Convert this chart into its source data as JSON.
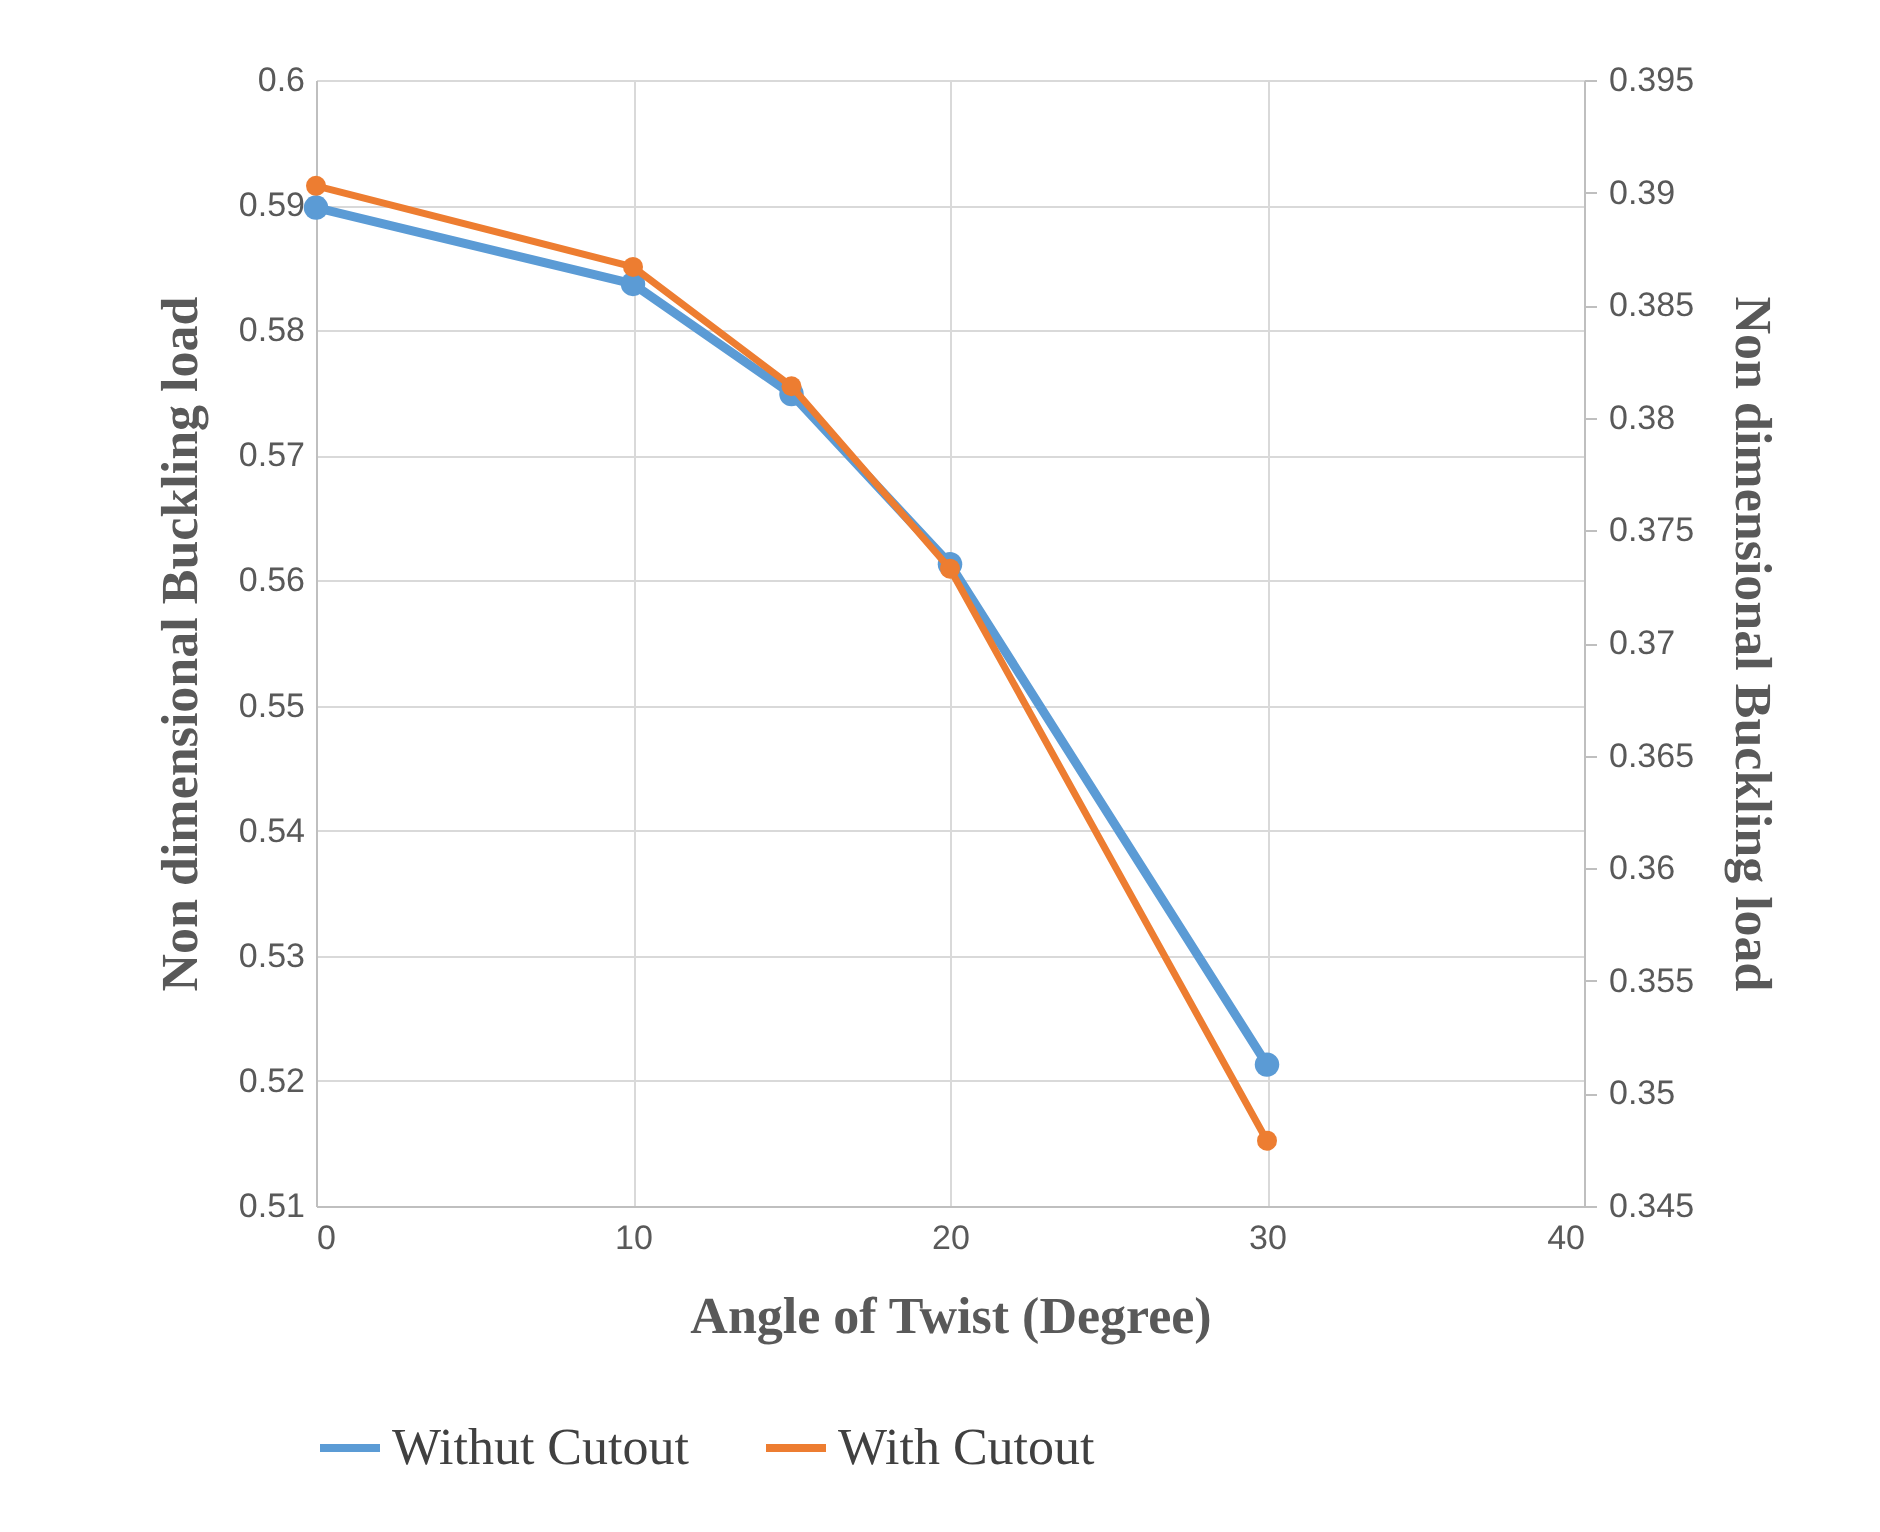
{
  "chart_data": {
    "type": "line",
    "xlabel": "Angle of Twist (Degree)",
    "ylabel": "Non dimensional Buckling load",
    "y2label": "Non dimensional Buckling load",
    "x": [
      0,
      10,
      15,
      20,
      30
    ],
    "series": [
      {
        "name": "Withut Cutout",
        "color": "#5b9bd5",
        "values": [
          0.5898,
          0.5837,
          0.5749,
          0.5613,
          0.5213
        ]
      },
      {
        "name": "With Cutout",
        "color": "#ed7d31",
        "axis": "y2",
        "values": [
          0.3903,
          0.3867,
          0.3814,
          0.3733,
          0.3479
        ]
      }
    ],
    "xlim": [
      0,
      40
    ],
    "xticks": [
      0,
      10,
      20,
      30,
      40
    ],
    "ylim": [
      0.51,
      0.6
    ],
    "yticks": [
      0.51,
      0.52,
      0.53,
      0.54,
      0.55,
      0.56,
      0.57,
      0.58,
      0.59,
      0.6
    ],
    "y2lim": [
      0.345,
      0.395
    ],
    "y2ticks": [
      0.345,
      0.35,
      0.355,
      0.36,
      0.365,
      0.37,
      0.375,
      0.38,
      0.385,
      0.39,
      0.395
    ],
    "grid": true,
    "legend": "bottom",
    "marker": "circle",
    "line_style": "solid"
  }
}
